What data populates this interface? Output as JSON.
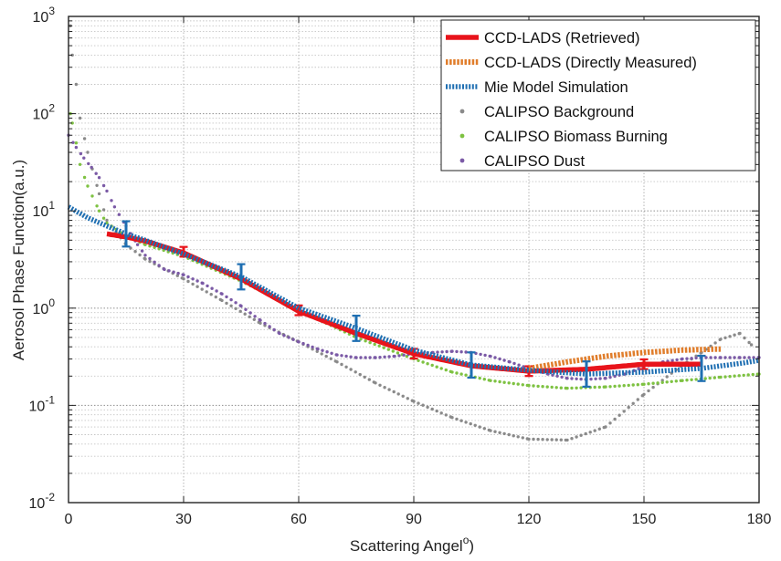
{
  "chart_data": {
    "type": "scatter",
    "title": "",
    "xlabel": "Scattering Angel",
    "xlabel_sup": "o",
    "ylabel": "Aerosol Phase Function(a.u.)",
    "x_ticks": [
      "0",
      "30",
      "60",
      "90",
      "120",
      "150",
      "180"
    ],
    "x_tick_values": [
      0,
      30,
      60,
      90,
      120,
      150,
      180
    ],
    "y_ticks": [
      {
        "base": "10",
        "exp": "-2",
        "value": 0.01
      },
      {
        "base": "10",
        "exp": "-1",
        "value": 0.1
      },
      {
        "base": "10",
        "exp": "0",
        "value": 1
      },
      {
        "base": "10",
        "exp": "1",
        "value": 10
      },
      {
        "base": "10",
        "exp": "2",
        "value": 100
      },
      {
        "base": "10",
        "exp": "3",
        "value": 1000
      }
    ],
    "xlim": [
      0,
      180
    ],
    "ylim": [
      0.01,
      1000
    ],
    "yscale": "log",
    "grid": true,
    "legend_position": "top-right",
    "series": [
      {
        "name": "CCD-LADS (Retrieved)",
        "style": "thick-line",
        "color": "#e8141b",
        "x": [
          10,
          15,
          20,
          30,
          45,
          60,
          75,
          90,
          105,
          120,
          135,
          150,
          165
        ],
        "y": [
          5.8,
          5.4,
          4.9,
          3.7,
          2.0,
          0.93,
          0.55,
          0.34,
          0.255,
          0.225,
          0.235,
          0.265,
          0.265
        ],
        "error_markers_x": [
          30,
          60,
          90,
          120,
          150
        ],
        "error_markers_y": [
          3.8,
          0.95,
          0.34,
          0.225,
          0.265
        ],
        "error_half_decades": 0.05
      },
      {
        "name": "CCD-LADS (Directly Measured)",
        "style": "thick-dashed",
        "color": "#e07d2b",
        "x": [
          120,
          130,
          140,
          150,
          160,
          170
        ],
        "y": [
          0.24,
          0.28,
          0.32,
          0.35,
          0.37,
          0.38
        ]
      },
      {
        "name": "Mie Model Simulation",
        "style": "thick-dotted",
        "color": "#1f6fb2",
        "x": [
          0,
          5,
          10,
          15,
          20,
          30,
          45,
          60,
          75,
          90,
          105,
          120,
          135,
          150,
          165,
          175,
          180
        ],
        "y": [
          11,
          8.5,
          7.0,
          5.8,
          5.0,
          3.6,
          2.1,
          1.0,
          0.62,
          0.37,
          0.26,
          0.23,
          0.21,
          0.22,
          0.24,
          0.27,
          0.29
        ],
        "error_markers_x": [
          15,
          45,
          75,
          105,
          135,
          165
        ],
        "error_markers_y": [
          5.8,
          2.1,
          0.62,
          0.26,
          0.21,
          0.24
        ],
        "error_half_decades": 0.13
      },
      {
        "name": "CALIPSO Background",
        "style": "dots",
        "color": "#8a8a8a",
        "x": [
          0.5,
          1,
          2,
          3,
          5,
          8,
          10,
          15,
          20,
          30,
          40,
          50,
          60,
          70,
          80,
          90,
          100,
          110,
          120,
          130,
          140,
          150,
          160,
          165,
          170,
          175,
          178
        ],
        "y": [
          800,
          400,
          200,
          90,
          40,
          15,
          8,
          4.5,
          3.2,
          2.0,
          1.2,
          0.7,
          0.45,
          0.28,
          0.17,
          0.11,
          0.075,
          0.055,
          0.045,
          0.044,
          0.06,
          0.13,
          0.26,
          0.35,
          0.48,
          0.55,
          0.42
        ]
      },
      {
        "name": "CALIPSO Biomass Burning",
        "style": "dots",
        "color": "#7ec242",
        "x": [
          0.5,
          1,
          2,
          3,
          5,
          8,
          10,
          15,
          20,
          30,
          45,
          60,
          75,
          90,
          100,
          110,
          120,
          130,
          140,
          150,
          160,
          170,
          180
        ],
        "y": [
          100,
          80,
          50,
          30,
          18,
          10,
          7.5,
          5.5,
          4.5,
          3.4,
          1.9,
          0.95,
          0.5,
          0.3,
          0.22,
          0.18,
          0.16,
          0.15,
          0.155,
          0.165,
          0.18,
          0.195,
          0.21
        ]
      },
      {
        "name": "CALIPSO Dust",
        "style": "dots",
        "color": "#7b5aa6",
        "x": [
          0,
          2,
          4,
          6,
          8,
          10,
          12,
          15,
          18,
          20,
          25,
          30,
          35,
          40,
          45,
          50,
          55,
          60,
          65,
          70,
          75,
          80,
          85,
          90,
          95,
          100,
          105,
          110,
          115,
          120,
          125,
          130,
          135,
          140,
          145,
          150,
          155,
          160,
          165,
          170,
          175,
          180
        ],
        "y": [
          60,
          45,
          35,
          28,
          22,
          16,
          11,
          7,
          4.5,
          3.5,
          2.5,
          2.2,
          1.8,
          1.4,
          1.05,
          0.75,
          0.55,
          0.45,
          0.38,
          0.33,
          0.31,
          0.31,
          0.32,
          0.34,
          0.35,
          0.36,
          0.35,
          0.32,
          0.28,
          0.24,
          0.21,
          0.19,
          0.185,
          0.19,
          0.21,
          0.25,
          0.28,
          0.3,
          0.31,
          0.31,
          0.31,
          0.31
        ]
      }
    ]
  }
}
